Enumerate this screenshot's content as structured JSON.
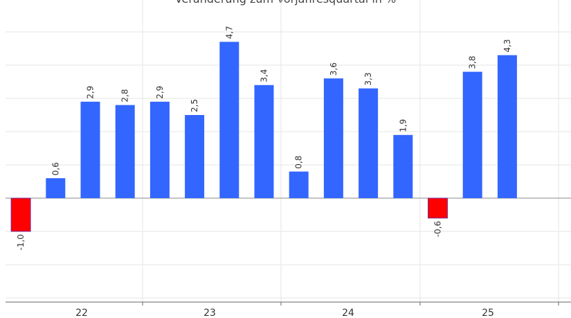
{
  "chart_data": {
    "type": "bar",
    "title": "Veränderung zum Vorjahresquartal in %",
    "x_groups": [
      "22",
      "23",
      "24",
      "25"
    ],
    "values": [
      -1.0,
      0.6,
      2.9,
      2.8,
      2.9,
      2.5,
      4.7,
      3.4,
      0.8,
      3.6,
      3.3,
      1.9,
      -0.6,
      3.8,
      4.3
    ],
    "labels": [
      "-1,0",
      "0,6",
      "2,9",
      "2,8",
      "2,9",
      "2,5",
      "4,7",
      "3,4",
      "0,8",
      "3,6",
      "3,3",
      "1,9",
      "-0,6",
      "3,8",
      "4,3"
    ],
    "ylim": [
      -3,
      6
    ],
    "grid": true,
    "colors": {
      "positive": "#3366ff",
      "negative": "#ff0000",
      "negative_border": "#7030a0"
    }
  }
}
